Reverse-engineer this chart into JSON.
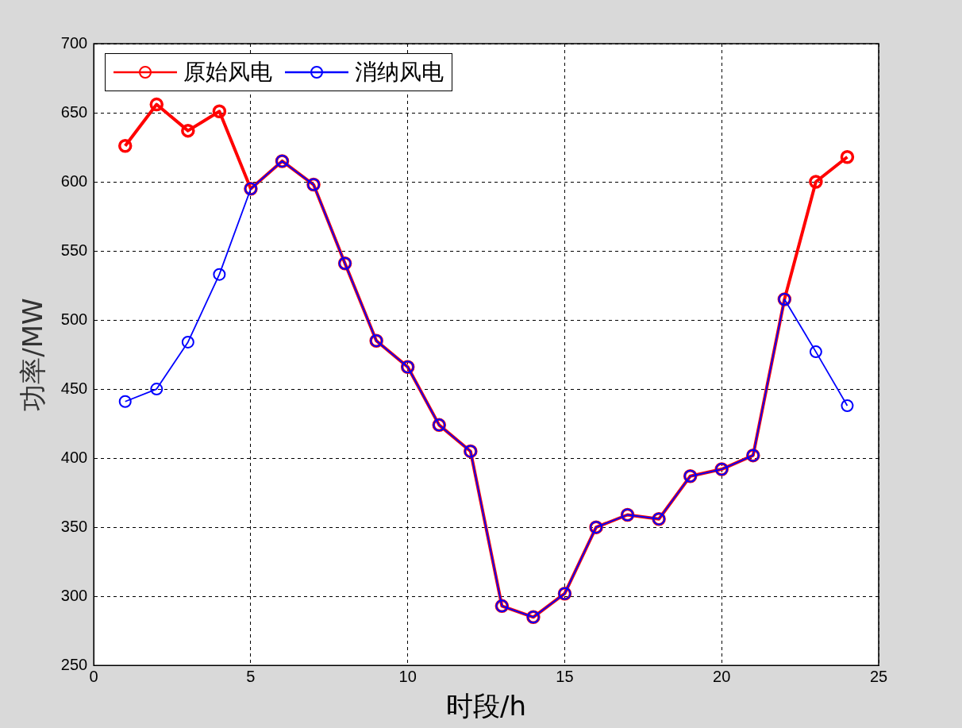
{
  "chart_data": {
    "type": "line",
    "xlabel": "时段/h",
    "ylabel": "功率/MW",
    "x": [
      1,
      2,
      3,
      4,
      5,
      6,
      7,
      8,
      9,
      10,
      11,
      12,
      13,
      14,
      15,
      16,
      17,
      18,
      19,
      20,
      21,
      22,
      23,
      24
    ],
    "series": [
      {
        "name": "原始风电",
        "color": "#ff0000",
        "values": [
          626,
          656,
          637,
          651,
          595,
          615,
          598,
          541,
          485,
          466,
          424,
          405,
          293,
          285,
          302,
          350,
          359,
          356,
          387,
          392,
          402,
          515,
          600,
          618
        ]
      },
      {
        "name": "消纳风电",
        "color": "#0000ff",
        "values": [
          441,
          450,
          484,
          533,
          595,
          615,
          598,
          541,
          485,
          466,
          424,
          405,
          293,
          285,
          302,
          350,
          359,
          356,
          387,
          392,
          402,
          515,
          477,
          438
        ]
      }
    ],
    "xlim": [
      0,
      25
    ],
    "xticks": [
      0,
      5,
      10,
      15,
      20,
      25
    ],
    "ylim": [
      250,
      700
    ],
    "yticks": [
      250,
      300,
      350,
      400,
      450,
      500,
      550,
      600,
      650,
      700
    ],
    "grid": true,
    "legend": "top left",
    "marker": "circle",
    "line_style": "solid"
  }
}
